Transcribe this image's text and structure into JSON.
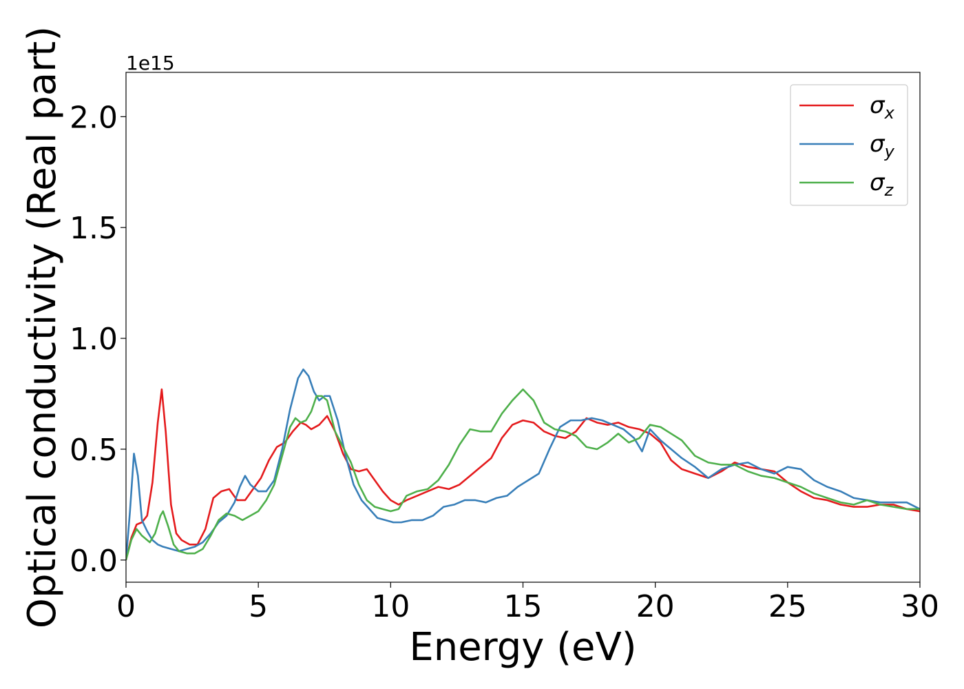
{
  "chart_data": {
    "type": "line",
    "xlabel": "Energy (eV)",
    "ylabel": "Optical conductivity (Real part)",
    "offset_text": "1e15",
    "xlim": [
      0,
      30
    ],
    "ylim": [
      -0.1,
      2.2
    ],
    "xticks": [
      0,
      5,
      10,
      15,
      20,
      25,
      30
    ],
    "xtick_labels": [
      "0",
      "5",
      "10",
      "15",
      "20",
      "25",
      "30"
    ],
    "yticks": [
      0.0,
      0.5,
      1.0,
      1.5,
      2.0
    ],
    "ytick_labels": [
      "0.0",
      "0.5",
      "1.0",
      "1.5",
      "2.0"
    ],
    "grid": false,
    "legend_position": "top-right",
    "series": [
      {
        "name": "σx",
        "legend_base": "σ",
        "legend_sub": "x",
        "color": "#e41a1c",
        "x": [
          0,
          0.2,
          0.4,
          0.6,
          0.8,
          1.0,
          1.2,
          1.35,
          1.5,
          1.7,
          1.9,
          2.1,
          2.4,
          2.7,
          3.0,
          3.3,
          3.6,
          3.9,
          4.2,
          4.5,
          4.8,
          5.1,
          5.4,
          5.7,
          6.0,
          6.3,
          6.6,
          6.8,
          7.0,
          7.3,
          7.6,
          7.9,
          8.2,
          8.5,
          8.8,
          9.1,
          9.4,
          9.7,
          10.0,
          10.3,
          10.6,
          11.0,
          11.4,
          11.8,
          12.2,
          12.6,
          13.0,
          13.4,
          13.8,
          14.2,
          14.6,
          15.0,
          15.4,
          15.8,
          16.2,
          16.6,
          17.0,
          17.4,
          17.8,
          18.2,
          18.6,
          19.0,
          19.4,
          19.8,
          20.2,
          20.6,
          21.0,
          21.5,
          22.0,
          22.5,
          23.0,
          23.5,
          24.0,
          24.5,
          25.0,
          25.5,
          26.0,
          26.5,
          27.0,
          27.5,
          28.0,
          28.5,
          29.0,
          29.5,
          30.0
        ],
        "y": [
          0.0,
          0.1,
          0.16,
          0.17,
          0.2,
          0.35,
          0.62,
          0.77,
          0.58,
          0.25,
          0.12,
          0.09,
          0.07,
          0.07,
          0.14,
          0.28,
          0.31,
          0.32,
          0.27,
          0.27,
          0.32,
          0.37,
          0.45,
          0.51,
          0.53,
          0.58,
          0.62,
          0.61,
          0.59,
          0.61,
          0.65,
          0.58,
          0.48,
          0.41,
          0.4,
          0.41,
          0.36,
          0.31,
          0.27,
          0.25,
          0.27,
          0.29,
          0.31,
          0.33,
          0.32,
          0.34,
          0.38,
          0.42,
          0.46,
          0.55,
          0.61,
          0.63,
          0.62,
          0.58,
          0.56,
          0.55,
          0.58,
          0.64,
          0.62,
          0.61,
          0.62,
          0.6,
          0.59,
          0.57,
          0.53,
          0.45,
          0.41,
          0.39,
          0.37,
          0.4,
          0.44,
          0.42,
          0.41,
          0.4,
          0.35,
          0.31,
          0.28,
          0.27,
          0.25,
          0.24,
          0.24,
          0.25,
          0.25,
          0.23,
          0.22
        ]
      },
      {
        "name": "σy",
        "legend_base": "σ",
        "legend_sub": "y",
        "color": "#377eb8",
        "x": [
          0,
          0.15,
          0.3,
          0.45,
          0.6,
          0.8,
          1.0,
          1.2,
          1.4,
          1.7,
          2.0,
          2.3,
          2.6,
          2.9,
          3.2,
          3.5,
          3.8,
          4.1,
          4.3,
          4.5,
          4.7,
          5.0,
          5.3,
          5.6,
          5.9,
          6.2,
          6.5,
          6.7,
          6.9,
          7.1,
          7.3,
          7.5,
          7.7,
          8.0,
          8.3,
          8.6,
          8.9,
          9.2,
          9.5,
          9.8,
          10.1,
          10.4,
          10.8,
          11.2,
          11.6,
          12.0,
          12.4,
          12.8,
          13.2,
          13.6,
          14.0,
          14.4,
          14.8,
          15.2,
          15.6,
          16.0,
          16.4,
          16.8,
          17.2,
          17.6,
          18.0,
          18.4,
          18.8,
          19.2,
          19.5,
          19.8,
          20.2,
          20.6,
          21.0,
          21.5,
          22.0,
          22.5,
          23.0,
          23.5,
          24.0,
          24.5,
          25.0,
          25.5,
          26.0,
          26.5,
          27.0,
          27.5,
          28.0,
          28.5,
          29.0,
          29.5,
          30.0
        ],
        "y": [
          0.0,
          0.22,
          0.48,
          0.38,
          0.18,
          0.13,
          0.09,
          0.07,
          0.06,
          0.05,
          0.04,
          0.05,
          0.06,
          0.08,
          0.12,
          0.17,
          0.2,
          0.26,
          0.33,
          0.38,
          0.34,
          0.31,
          0.31,
          0.36,
          0.5,
          0.68,
          0.82,
          0.86,
          0.83,
          0.76,
          0.72,
          0.74,
          0.74,
          0.63,
          0.47,
          0.34,
          0.27,
          0.23,
          0.19,
          0.18,
          0.17,
          0.17,
          0.18,
          0.18,
          0.2,
          0.24,
          0.25,
          0.27,
          0.27,
          0.26,
          0.28,
          0.29,
          0.33,
          0.36,
          0.39,
          0.5,
          0.6,
          0.63,
          0.63,
          0.64,
          0.63,
          0.61,
          0.59,
          0.55,
          0.49,
          0.59,
          0.54,
          0.5,
          0.46,
          0.42,
          0.37,
          0.41,
          0.43,
          0.44,
          0.41,
          0.39,
          0.42,
          0.41,
          0.36,
          0.33,
          0.31,
          0.28,
          0.27,
          0.26,
          0.26,
          0.26,
          0.23
        ]
      },
      {
        "name": "σz",
        "legend_base": "σ",
        "legend_sub": "z",
        "color": "#4daf4a",
        "x": [
          0,
          0.2,
          0.4,
          0.6,
          0.9,
          1.1,
          1.3,
          1.4,
          1.6,
          1.8,
          2.0,
          2.3,
          2.6,
          2.9,
          3.2,
          3.5,
          3.8,
          4.1,
          4.4,
          4.7,
          5.0,
          5.3,
          5.6,
          5.9,
          6.2,
          6.4,
          6.6,
          6.8,
          7.0,
          7.2,
          7.4,
          7.6,
          7.9,
          8.2,
          8.5,
          8.8,
          9.1,
          9.4,
          9.7,
          10.0,
          10.3,
          10.6,
          11.0,
          11.4,
          11.8,
          12.2,
          12.6,
          13.0,
          13.4,
          13.8,
          14.2,
          14.6,
          15.0,
          15.4,
          15.8,
          16.2,
          16.6,
          17.0,
          17.4,
          17.8,
          18.2,
          18.6,
          19.0,
          19.4,
          19.8,
          20.2,
          20.6,
          21.0,
          21.5,
          22.0,
          22.5,
          23.0,
          23.5,
          24.0,
          24.5,
          25.0,
          25.5,
          26.0,
          26.5,
          27.0,
          27.5,
          28.0,
          28.5,
          29.0,
          29.5,
          30.0
        ],
        "y": [
          0.0,
          0.09,
          0.14,
          0.11,
          0.08,
          0.12,
          0.2,
          0.22,
          0.15,
          0.07,
          0.04,
          0.03,
          0.03,
          0.05,
          0.11,
          0.18,
          0.21,
          0.2,
          0.18,
          0.2,
          0.22,
          0.27,
          0.34,
          0.47,
          0.6,
          0.64,
          0.62,
          0.63,
          0.67,
          0.74,
          0.74,
          0.72,
          0.58,
          0.51,
          0.44,
          0.34,
          0.27,
          0.24,
          0.23,
          0.22,
          0.23,
          0.29,
          0.31,
          0.32,
          0.36,
          0.43,
          0.52,
          0.59,
          0.58,
          0.58,
          0.66,
          0.72,
          0.77,
          0.72,
          0.62,
          0.59,
          0.58,
          0.56,
          0.51,
          0.5,
          0.53,
          0.57,
          0.53,
          0.55,
          0.61,
          0.6,
          0.57,
          0.54,
          0.47,
          0.44,
          0.43,
          0.43,
          0.4,
          0.38,
          0.37,
          0.35,
          0.33,
          0.3,
          0.28,
          0.26,
          0.25,
          0.27,
          0.25,
          0.24,
          0.23,
          0.23
        ]
      }
    ]
  }
}
